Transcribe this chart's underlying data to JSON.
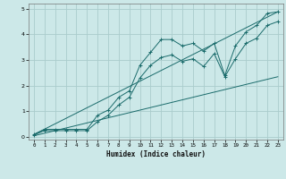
{
  "bg_color": "#cce8e8",
  "grid_color": "#aacccc",
  "line_color": "#1a6b6b",
  "xlabel": "Humidex (Indice chaleur)",
  "xlim": [
    -0.5,
    23.5
  ],
  "ylim": [
    -0.1,
    5.2
  ],
  "xticks": [
    0,
    1,
    2,
    3,
    4,
    5,
    6,
    7,
    8,
    9,
    10,
    11,
    12,
    13,
    14,
    15,
    16,
    17,
    18,
    19,
    20,
    21,
    22,
    23
  ],
  "yticks": [
    0,
    1,
    2,
    3,
    4,
    5
  ],
  "curve1_x": [
    0,
    1,
    2,
    3,
    4,
    5,
    6,
    7,
    8,
    9,
    10,
    11,
    12,
    13,
    14,
    15,
    16,
    17,
    18,
    19,
    20,
    21,
    22,
    23
  ],
  "curve1_y": [
    0.1,
    0.3,
    0.3,
    0.3,
    0.3,
    0.3,
    0.85,
    1.05,
    1.55,
    1.8,
    2.8,
    3.3,
    3.8,
    3.8,
    3.55,
    3.65,
    3.35,
    3.65,
    2.4,
    3.55,
    4.1,
    4.35,
    4.82,
    4.88
  ],
  "curve2_x": [
    0,
    1,
    2,
    3,
    4,
    5,
    6,
    7,
    8,
    9,
    10,
    11,
    12,
    13,
    14,
    15,
    16,
    17,
    18,
    19,
    20,
    21,
    22,
    23
  ],
  "curve2_y": [
    0.08,
    0.25,
    0.25,
    0.25,
    0.25,
    0.25,
    0.6,
    0.85,
    1.25,
    1.55,
    2.3,
    2.8,
    3.1,
    3.2,
    2.95,
    3.05,
    2.75,
    3.25,
    2.35,
    3.05,
    3.65,
    3.85,
    4.35,
    4.5
  ],
  "line1_x": [
    0,
    23
  ],
  "line1_y": [
    0.1,
    4.88
  ],
  "line2_x": [
    0,
    23
  ],
  "line2_y": [
    0.05,
    2.35
  ]
}
